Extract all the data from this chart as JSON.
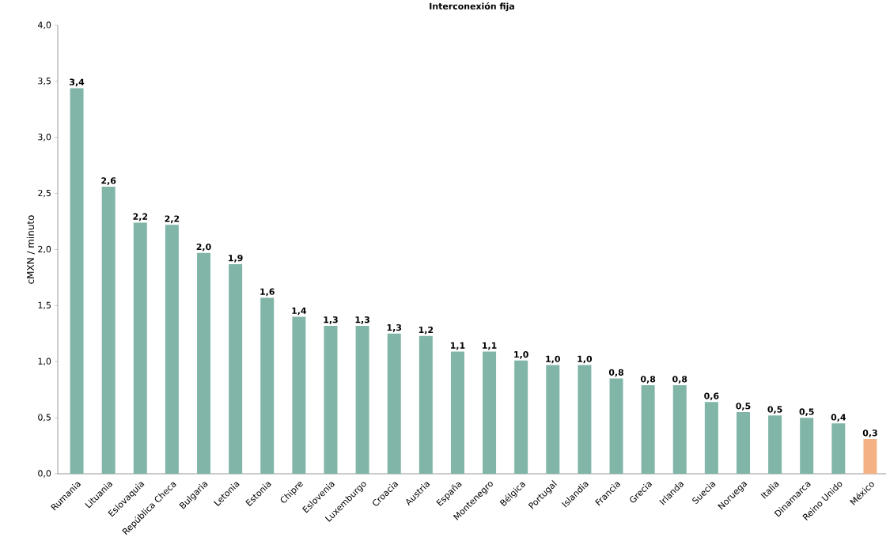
{
  "chart_data": {
    "type": "bar",
    "title": "Interconexión fija",
    "ylabel": "cMXN / minuto",
    "categories": [
      "Rumania",
      "Lituania",
      "Eslovaquia",
      "República Checa",
      "Bulgaria",
      "Letonia",
      "Estonia",
      "Chipre",
      "Eslovenia",
      "Luxemburgo",
      "Croacia",
      "Austria",
      "España",
      "Montenegro",
      "Bélgica",
      "Portugal",
      "Islandia",
      "Francia",
      "Grecia",
      "Irlanda",
      "Suecia",
      "Noruega",
      "Italia",
      "Dinamarca",
      "Reino Unido",
      "México"
    ],
    "values": [
      3.44,
      2.56,
      2.24,
      2.22,
      1.97,
      1.87,
      1.57,
      1.4,
      1.32,
      1.32,
      1.25,
      1.23,
      1.09,
      1.09,
      1.01,
      0.97,
      0.97,
      0.85,
      0.79,
      0.79,
      0.64,
      0.55,
      0.52,
      0.5,
      0.45,
      0.31
    ],
    "value_labels": [
      "3,4",
      "2,6",
      "2,2",
      "2,2",
      "2,0",
      "1,9",
      "1,6",
      "1,4",
      "1,3",
      "1,3",
      "1,3",
      "1,2",
      "1,1",
      "1,1",
      "1,0",
      "1,0",
      "1,0",
      "0,8",
      "0,8",
      "0,8",
      "0,6",
      "0,5",
      "0,5",
      "0,5",
      "0,4",
      "0,3"
    ],
    "colors": [
      "#80b5a8",
      "#80b5a8",
      "#80b5a8",
      "#80b5a8",
      "#80b5a8",
      "#80b5a8",
      "#80b5a8",
      "#80b5a8",
      "#80b5a8",
      "#80b5a8",
      "#80b5a8",
      "#80b5a8",
      "#80b5a8",
      "#80b5a8",
      "#80b5a8",
      "#80b5a8",
      "#80b5a8",
      "#80b5a8",
      "#80b5a8",
      "#80b5a8",
      "#80b5a8",
      "#80b5a8",
      "#80b5a8",
      "#80b5a8",
      "#80b5a8",
      "#f4b183"
    ],
    "ylim": [
      0,
      4
    ],
    "yticks": [
      {
        "value": 0,
        "label": "0,0"
      },
      {
        "value": 0.5,
        "label": "0,5"
      },
      {
        "value": 1,
        "label": "1,0"
      },
      {
        "value": 1.5,
        "label": "1,5"
      },
      {
        "value": 2,
        "label": "2,0"
      },
      {
        "value": 2.5,
        "label": "2,5"
      },
      {
        "value": 3,
        "label": "3,0"
      },
      {
        "value": 3.5,
        "label": "3,5"
      },
      {
        "value": 4,
        "label": "4,0"
      }
    ],
    "grid": false
  }
}
